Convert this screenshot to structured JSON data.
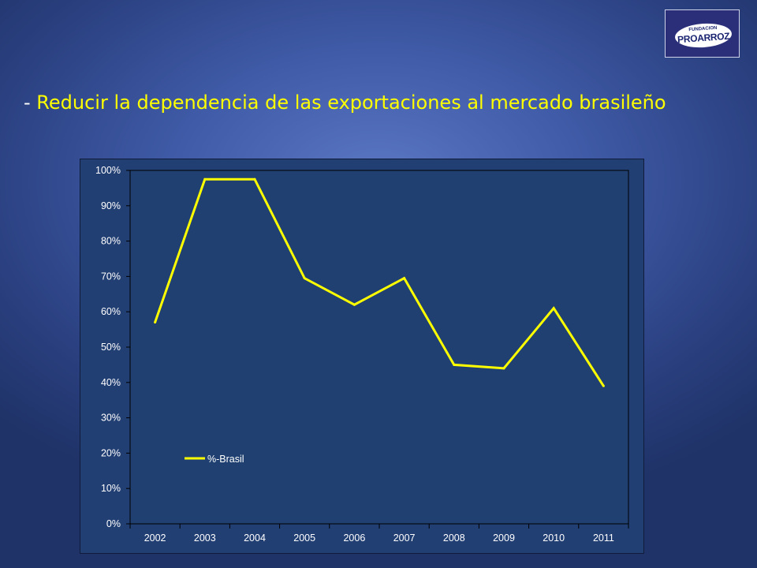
{
  "logo": {
    "small_text": "FUNDACION",
    "big_text": "PROARROZ"
  },
  "heading": {
    "dash": "- ",
    "text": "Reducir la dependencia de las exportaciones al mercado brasileño"
  },
  "colors": {
    "line": "#ffff00",
    "plot_background": "#1f4070",
    "axis": "#000000"
  },
  "chart_data": {
    "type": "line",
    "title": "",
    "xlabel": "",
    "ylabel": "",
    "categories": [
      "2002",
      "2003",
      "2004",
      "2005",
      "2006",
      "2007",
      "2008",
      "2009",
      "2010",
      "2011"
    ],
    "series": [
      {
        "name": "%-Brasil",
        "values": [
          57,
          97.5,
          97.5,
          69.5,
          62,
          69.5,
          45,
          44,
          61,
          39
        ]
      }
    ],
    "ylim": [
      0,
      100
    ],
    "yticks": [
      0,
      10,
      20,
      30,
      40,
      50,
      60,
      70,
      80,
      90,
      100
    ],
    "ytick_labels": [
      "0%",
      "10%",
      "20%",
      "30%",
      "40%",
      "50%",
      "60%",
      "70%",
      "80%",
      "90%",
      "100%"
    ],
    "legend_position": "lower-left inside plot",
    "grid": false
  }
}
